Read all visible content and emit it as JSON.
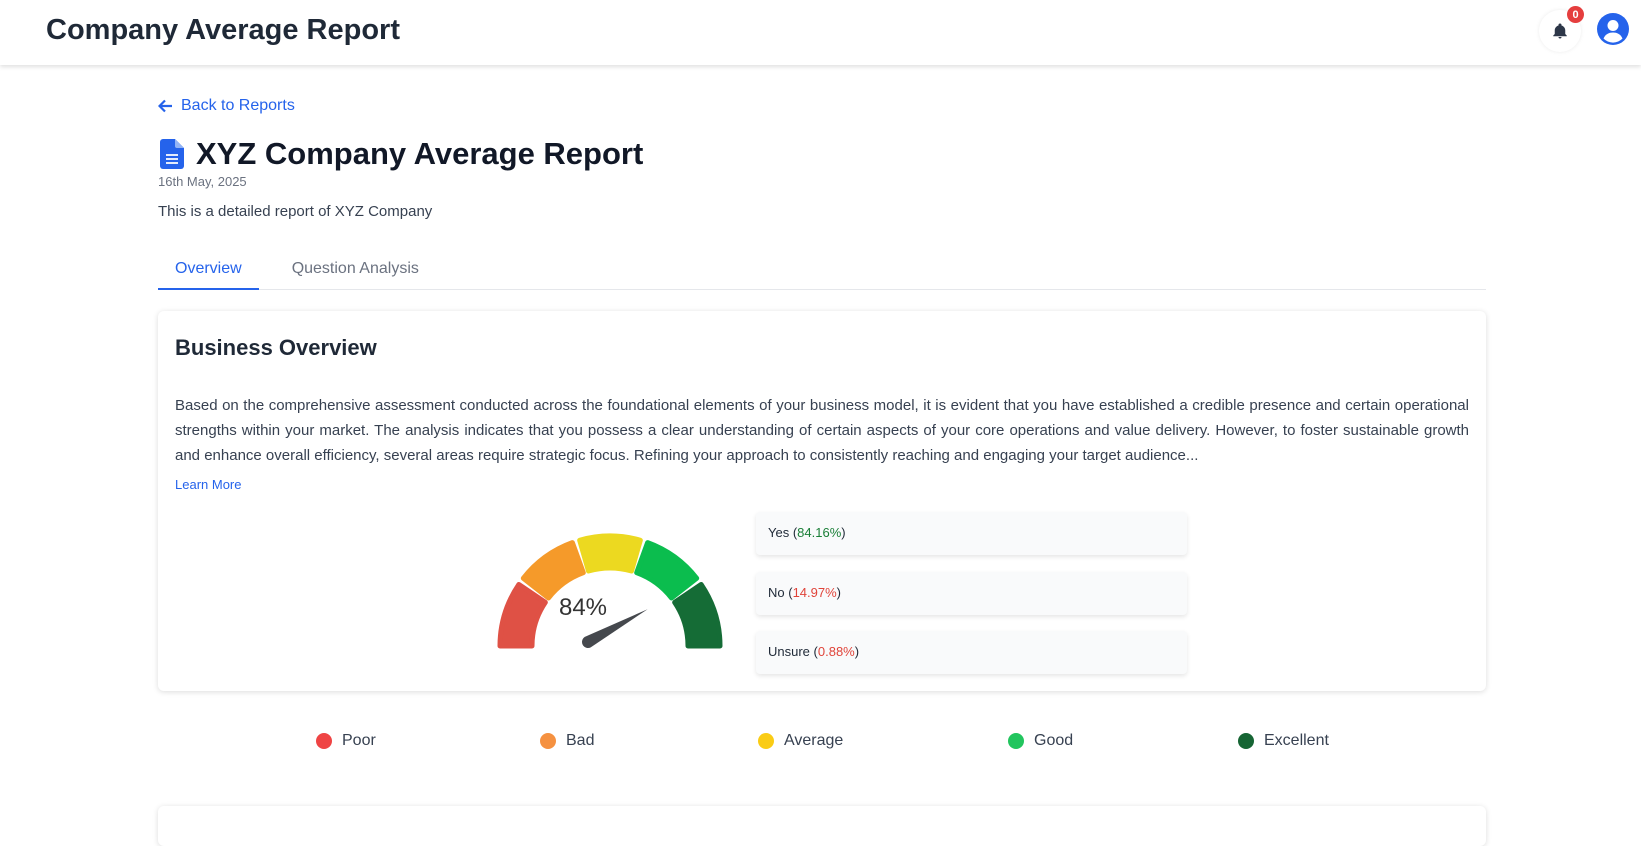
{
  "header": {
    "title": "Company Average Report",
    "notification_count": "0",
    "icons": [
      "bell-icon",
      "user-avatar-icon"
    ]
  },
  "back_link": "Back to Reports",
  "report": {
    "title": "XYZ Company Average Report",
    "date": "16th May, 2025",
    "description": "This is a detailed report of XYZ Company"
  },
  "tabs": [
    {
      "label": "Overview",
      "active": true
    },
    {
      "label": "Question Analysis",
      "active": false
    }
  ],
  "overview": {
    "heading": "Business Overview",
    "text": "Based on the comprehensive assessment conducted across the foundational elements of your business model, it is evident that you have established a credible presence and certain operational strengths within your market. The analysis indicates that you possess a clear understanding of certain aspects of your core operations and value delivery. However, to foster sustainable growth and enhance overall efficiency, several areas require strategic focus. Refining your approach to consistently reaching and engaging your target audience...",
    "learn_more": "Learn More",
    "gauge": {
      "value": 84,
      "label": "84%",
      "segment_colors": [
        "#df5145",
        "#f59a2a",
        "#ecd920",
        "#0bbd4e",
        "#156c36"
      ],
      "needle_color": "#45484d"
    },
    "answers": [
      {
        "label": "Yes",
        "value": "84.16%",
        "color": "#1a7f37"
      },
      {
        "label": "No",
        "value": "14.97%",
        "color": "#e0443a"
      },
      {
        "label": "Unsure",
        "value": "0.88%",
        "color": "#e0443a"
      }
    ]
  },
  "legend": [
    {
      "label": "Poor",
      "color": "#ef4444"
    },
    {
      "label": "Bad",
      "color": "#f59140"
    },
    {
      "label": "Average",
      "color": "#facc15"
    },
    {
      "label": "Good",
      "color": "#22c55e"
    },
    {
      "label": "Excellent",
      "color": "#166534"
    }
  ]
}
